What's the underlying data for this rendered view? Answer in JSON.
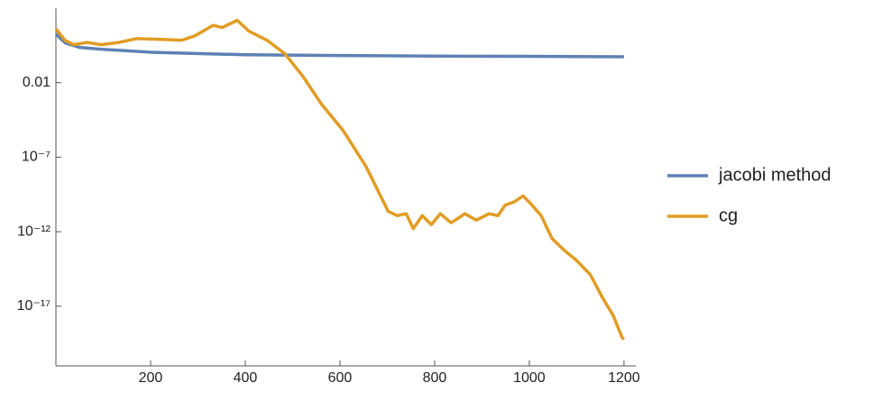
{
  "chart_data": {
    "type": "line",
    "log_y": true,
    "xlim": [
      0,
      1225
    ],
    "xticks": [
      200,
      400,
      600,
      800,
      1000,
      1200
    ],
    "ylim": [
      1e-21,
      1000
    ],
    "yticks": [
      0.01,
      {
        "value": 1e-07,
        "label": "10⁻⁷"
      },
      {
        "value": 1e-12,
        "label": "10⁻¹²"
      },
      {
        "value": 1e-17,
        "label": "10⁻¹⁷"
      }
    ],
    "legend": "right",
    "series": [
      {
        "name": "jacobi method",
        "color": "#5e81b5",
        "x": [
          0,
          20,
          50,
          100,
          200,
          400,
          600,
          800,
          1000,
          1200
        ],
        "values": [
          18,
          4.6,
          2.3,
          1.7,
          1.1,
          0.74,
          0.66,
          0.6,
          0.58,
          0.54
        ]
      },
      {
        "name": "cg",
        "color": "#e19c24",
        "x": [
          0,
          19,
          38,
          66,
          95,
          133,
          171,
          218,
          266,
          294,
          332,
          351,
          383,
          408,
          446,
          484,
          522,
          560,
          607,
          655,
          702,
          721,
          740,
          755,
          774,
          793,
          812,
          835,
          864,
          888,
          915,
          934,
          949,
          968,
          987,
          1006,
          1025,
          1048,
          1073,
          1101,
          1129,
          1154,
          1177,
          1196,
          1200
        ],
        "values": [
          40,
          7,
          3.5,
          5,
          3.5,
          5,
          9,
          8,
          7,
          14,
          70,
          50,
          150,
          28,
          7,
          0.85,
          0.026,
          0.0004,
          6e-06,
          2.4e-08,
          2.3e-11,
          1.2e-11,
          1.6e-11,
          1.6e-12,
          1.2e-11,
          3e-12,
          1.6e-11,
          4e-12,
          1.6e-11,
          6e-12,
          1.6e-11,
          1.2e-11,
          6e-11,
          1e-10,
          2.5e-10,
          6e-11,
          1.2e-11,
          3.5e-13,
          6e-14,
          1.1e-14,
          1.3e-15,
          4e-17,
          2.5e-18,
          8e-20,
          6e-20
        ]
      }
    ]
  }
}
